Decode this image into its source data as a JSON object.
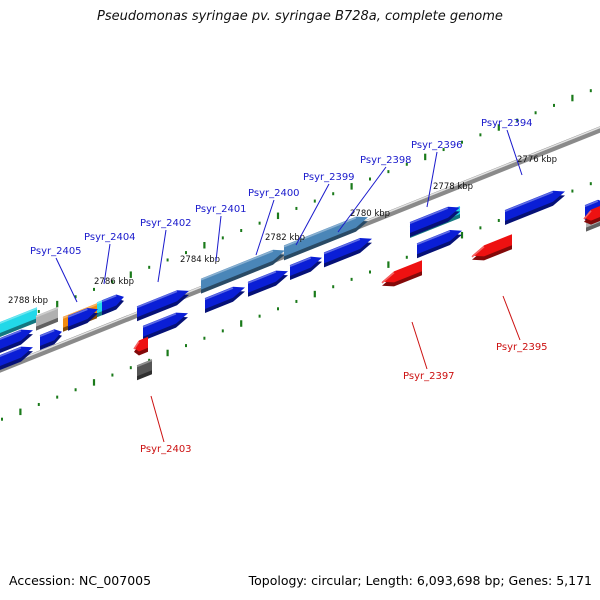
{
  "title": "Pseudomonas syringae pv. syringae B728a, complete genome",
  "footer": {
    "accession": "Accession: NC_007005",
    "topology": "Topology: circular; Length: 6,093,698 bp; Genes: 5,171"
  },
  "colors": {
    "forward_gene": "#0a1ed6",
    "reverse_gene": "#ee1111",
    "forward_label": "#1a1acc",
    "reverse_label": "#cc1111",
    "cyan_feature": "#22d8e8",
    "steel_feature": "#4a86b8",
    "orange_feature": "#f28a10",
    "gray_feature": "#b0b0b0",
    "backbone": "#8a8a8a",
    "tick": "#1a7a1a"
  },
  "kbp_labels": [
    "2788 kbp",
    "2786 kbp",
    "2784 kbp",
    "2782 kbp",
    "2780 kbp",
    "2778 kbp",
    "2776 kbp"
  ],
  "forward_genes": [
    "Psyr_2405",
    "Psyr_2404",
    "Psyr_2402",
    "Psyr_2401",
    "Psyr_2400",
    "Psyr_2399",
    "Psyr_2398",
    "Psyr_2396",
    "Psyr_2394"
  ],
  "reverse_genes": [
    "Psyr_2403",
    "Psyr_2397",
    "Psyr_2395"
  ]
}
